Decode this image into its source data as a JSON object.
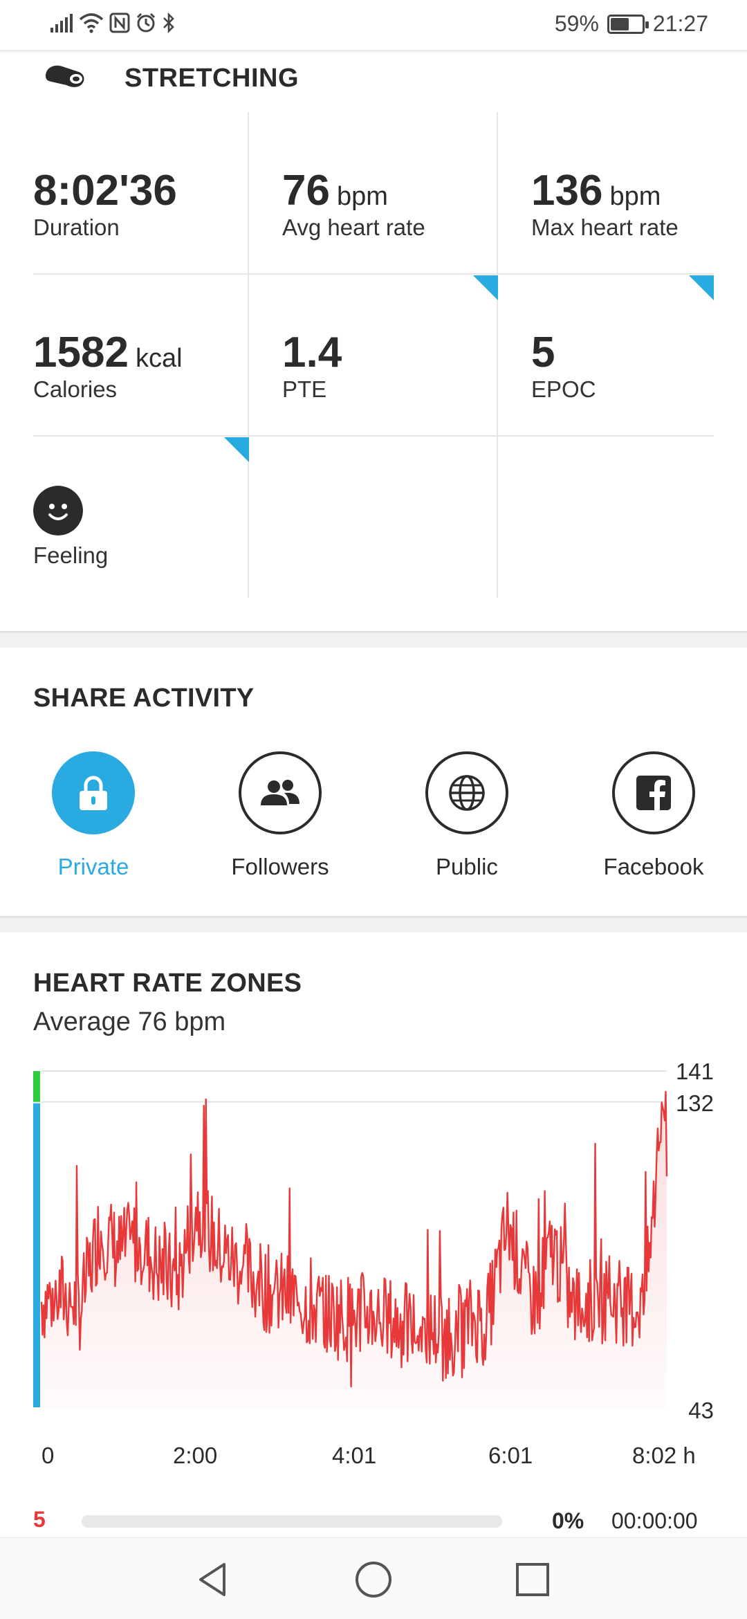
{
  "status_bar": {
    "battery_text": "59%",
    "battery_level": 0.59,
    "time": "21:27",
    "icons": [
      "signal-icon",
      "wifi-icon",
      "nfc-icon",
      "alarm-icon",
      "bluetooth-icon",
      "battery-icon"
    ]
  },
  "activity": {
    "title": "STRETCHING",
    "icon": "stretching-icon"
  },
  "stats": {
    "duration": {
      "value": "8:02'36",
      "unit": "",
      "label": "Duration"
    },
    "avg_hr": {
      "value": "76",
      "unit": "bpm",
      "label": "Avg heart rate"
    },
    "max_hr": {
      "value": "136",
      "unit": "bpm",
      "label": "Max heart rate"
    },
    "calories": {
      "value": "1582",
      "unit": "kcal",
      "label": "Calories"
    },
    "pte": {
      "value": "1.4",
      "unit": "",
      "label": "PTE"
    },
    "epoc": {
      "value": "5",
      "unit": "",
      "label": "EPOC"
    },
    "feeling": {
      "label": "Feeling",
      "icon": "smiley-face-icon"
    }
  },
  "share": {
    "title": "SHARE ACTIVITY",
    "options": [
      {
        "label": "Private",
        "icon": "lock-icon",
        "selected": true
      },
      {
        "label": "Followers",
        "icon": "people-icon",
        "selected": false
      },
      {
        "label": "Public",
        "icon": "globe-icon",
        "selected": false
      },
      {
        "label": "Facebook",
        "icon": "facebook-icon",
        "selected": false
      }
    ]
  },
  "hr_zones": {
    "title": "HEART RATE ZONES",
    "subtitle": "Average 76 bpm",
    "accent_color": "#29aae1",
    "line_color": "#e8393a",
    "zone_row": {
      "zone": "5",
      "percent_text": "0%",
      "percent": 0,
      "time": "00:00:00"
    }
  },
  "chart_data": {
    "type": "line",
    "title": "",
    "xlabel": "",
    "ylabel": "",
    "x_tick_labels": [
      "0",
      "2:00",
      "4:01",
      "6:01",
      "8:02 h"
    ],
    "y_tick_labels": [
      "141",
      "132",
      "43"
    ],
    "ylim": [
      43,
      141
    ],
    "xlim_minutes": [
      0,
      482.6
    ],
    "series": [
      {
        "values_time_minutes": [
          0,
          15,
          30,
          45,
          60,
          75,
          90,
          105,
          120,
          135,
          150,
          165,
          180,
          195,
          210,
          225,
          240,
          255,
          270,
          285,
          300,
          315,
          330,
          345,
          360,
          375,
          380,
          395,
          410,
          425,
          440,
          455,
          465,
          470,
          475,
          480,
          482.6
        ],
        "values_bpm": [
          74,
          76,
          72,
          95,
          88,
          92,
          84,
          80,
          102,
          90,
          85,
          80,
          76,
          75,
          72,
          70,
          69,
          71,
          68,
          66,
          66,
          64,
          68,
          70,
          96,
          78,
          74,
          90,
          72,
          74,
          75,
          72,
          74,
          90,
          112,
          136,
          108
        ]
      }
    ]
  },
  "nav": {
    "back": "back-icon",
    "home": "home-icon",
    "recents": "recents-icon"
  }
}
